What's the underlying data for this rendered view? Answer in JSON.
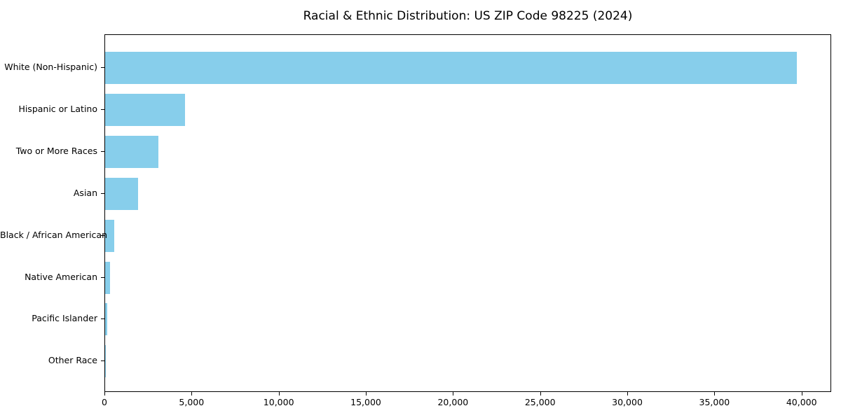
{
  "chart_data": {
    "type": "bar",
    "orientation": "horizontal",
    "title": "Racial & Ethnic Distribution: US ZIP Code 98225 (2024)",
    "categories": [
      "White (Non-Hispanic)",
      "Hispanic or Latino",
      "Two or More Races",
      "Asian",
      "Black / African American",
      "Native American",
      "Pacific Islander",
      "Other Race"
    ],
    "values": [
      39700,
      4600,
      3050,
      1900,
      540,
      280,
      140,
      40
    ],
    "xlabel": "",
    "ylabel": "",
    "xlim": [
      0,
      41700
    ],
    "x_ticks": [
      0,
      5000,
      10000,
      15000,
      20000,
      25000,
      30000,
      35000,
      40000
    ],
    "x_tick_labels": [
      "0",
      "5,000",
      "10,000",
      "15,000",
      "20,000",
      "25,000",
      "30,000",
      "35,000",
      "40,000"
    ],
    "bar_color": "#87CEEB",
    "frame_color": "#000000",
    "grid": false,
    "legend": "none"
  }
}
